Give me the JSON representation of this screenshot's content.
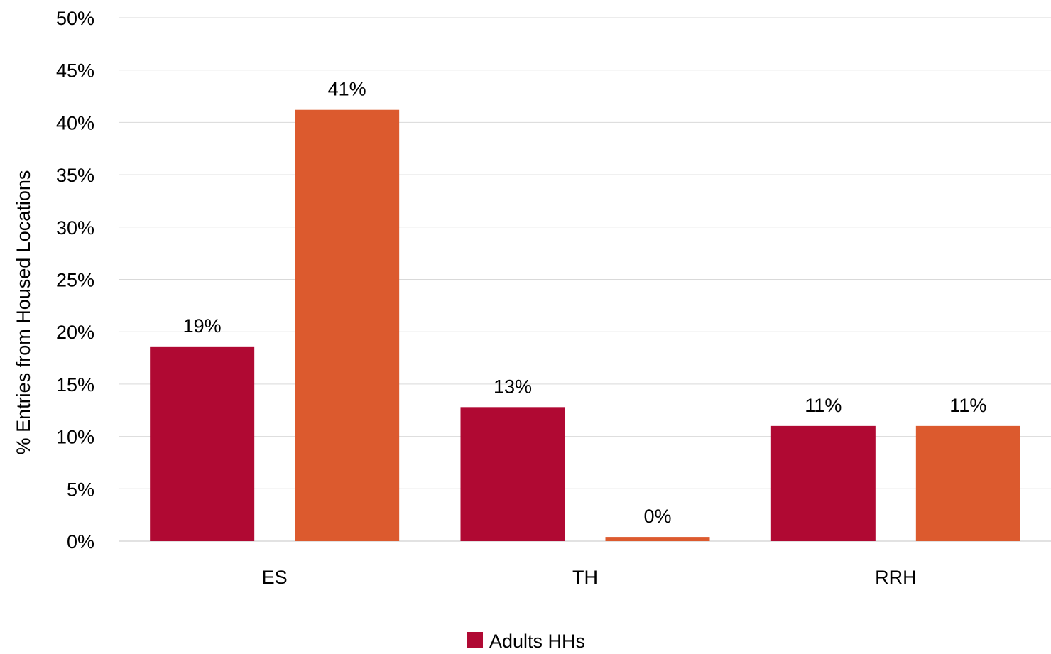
{
  "chart_data": {
    "type": "bar",
    "title": "",
    "xlabel": "",
    "ylabel": "% Entries from Housed Locations",
    "categories": [
      "ES",
      "TH",
      "RRH"
    ],
    "ylim": [
      0,
      50
    ],
    "y_ticks": [
      "0%",
      "5%",
      "10%",
      "15%",
      "20%",
      "25%",
      "30%",
      "35%",
      "40%",
      "45%",
      "50%"
    ],
    "grid": true,
    "legend_position": "bottom",
    "series": [
      {
        "name": "Adults HHs",
        "color": "#B00933",
        "values": [
          18.6,
          12.8,
          11.0
        ],
        "data_labels": [
          "19%",
          "13%",
          "11%"
        ]
      },
      {
        "color": "#DC5A2E",
        "values": [
          41.2,
          0.4,
          11.0
        ],
        "data_labels": [
          "41%",
          "0%",
          "11%"
        ]
      }
    ],
    "legend": [
      {
        "label": "Adults HHs",
        "color": "#B00933"
      }
    ]
  }
}
